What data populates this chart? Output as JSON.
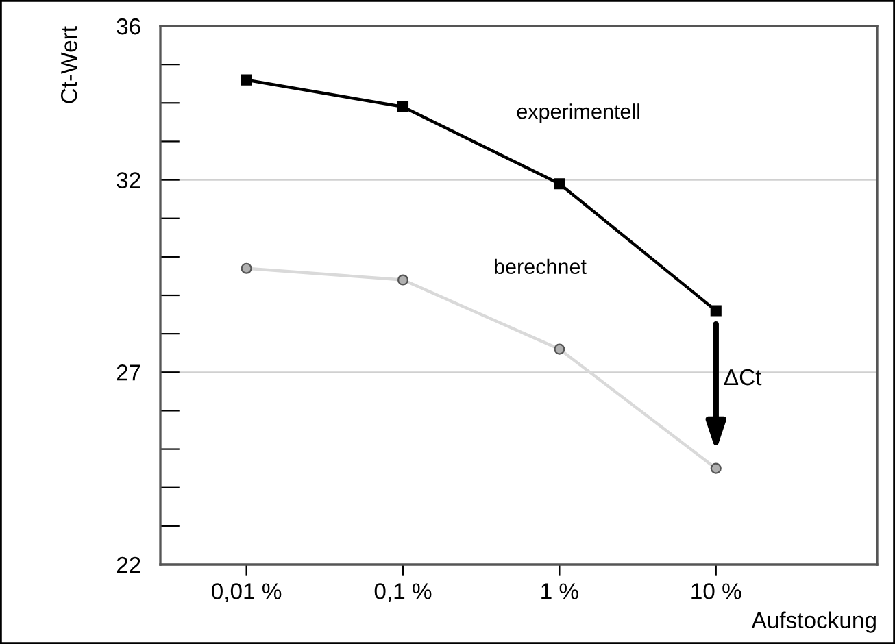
{
  "chart_data": {
    "type": "line",
    "xlabel": "Aufstockung",
    "ylabel": "Ct-Wert",
    "categories": [
      "0,01 %",
      "0,1 %",
      "1 %",
      "10 %"
    ],
    "series": [
      {
        "name": "experimentell",
        "color": "#000000",
        "marker": "square",
        "values": [
          34.6,
          33.9,
          31.9,
          28.6
        ]
      },
      {
        "name": "berechnet",
        "color": "#d9d9d9",
        "marker": "circle",
        "values": [
          29.7,
          29.4,
          27.6,
          24.5
        ]
      }
    ],
    "ylim": [
      22,
      36
    ],
    "yticks": [
      22,
      {
        "value": 23,
        "label": null
      },
      {
        "value": 24,
        "label": null
      },
      {
        "value": 25,
        "label": null
      },
      {
        "value": 26,
        "label": null
      },
      27,
      {
        "value": 28,
        "label": null
      },
      {
        "value": 29,
        "label": null
      },
      {
        "value": 30,
        "label": null
      },
      {
        "value": 31,
        "label": null
      },
      32,
      {
        "value": 33,
        "label": null
      },
      {
        "value": 34,
        "label": null
      },
      {
        "value": 35,
        "label": null
      },
      36
    ],
    "grid": "y",
    "legend": false,
    "annotations": [
      "ΔCt"
    ]
  }
}
